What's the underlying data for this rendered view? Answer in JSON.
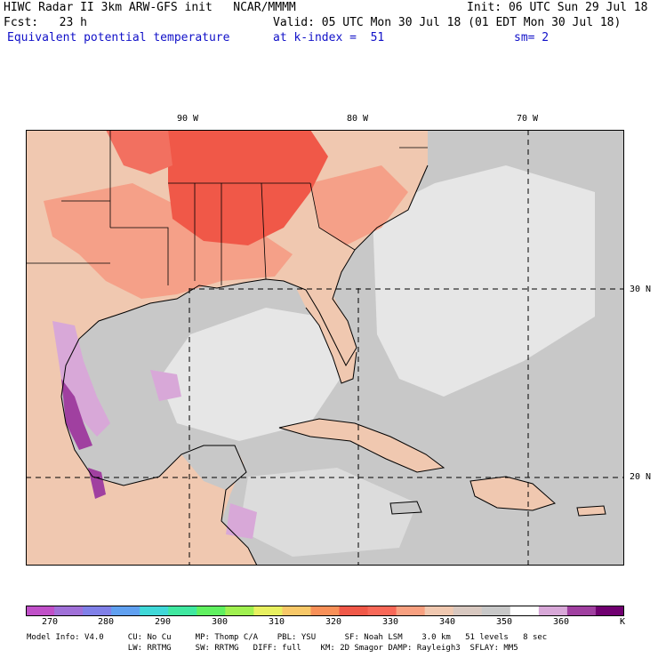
{
  "header": {
    "line1_left": "HIWC Radar II 3km ARW-GFS init   NCAR/MMMM",
    "line1_right": "Init: 06 UTC Sun 29 Jul 18",
    "line2_left": "Fcst:   23 h",
    "line2_right": "Valid: 05 UTC Mon 30 Jul 18 (01 EDT Mon 30 Jul 18)",
    "line3_field": "Equivalent potential temperature",
    "line3_level": "at k-index =  51",
    "line3_sm": "sm= 2"
  },
  "axes": {
    "lon_labels": [
      "90 W",
      "80 W",
      "70 W"
    ],
    "lat_labels": [
      "30 N",
      "20 N"
    ]
  },
  "colorbar": {
    "unit": "K",
    "ticks": [
      "270",
      "280",
      "290",
      "300",
      "310",
      "320",
      "330",
      "340",
      "350",
      "360"
    ],
    "colors": [
      "#c050c8",
      "#a070d8",
      "#8080e8",
      "#60a0f0",
      "#40d8d8",
      "#40e8a0",
      "#60f060",
      "#a0f050",
      "#e8f060",
      "#f8c868",
      "#f89058",
      "#f05848",
      "#f86858",
      "#f8a080",
      "#f0c8b0",
      "#d8c8c0",
      "#c8c8c8",
      "#ffffff",
      "#d8a8d8",
      "#a040a0",
      "#700070"
    ]
  },
  "map": {
    "colors": {
      "ocean": "#c8c8c8",
      "ocean_light": "#e6e6e6",
      "land": "#f0c8b0",
      "warm": "#f5a088",
      "hot": "#f05848",
      "purple_light": "#d8a8d8",
      "purple_dark": "#a040a0"
    }
  },
  "footer": {
    "line1": "Model Info: V4.0     CU: No Cu     MP: Thomp C/A    PBL: YSU      SF: Noah LSM    3.0 km   51 levels   8 sec",
    "line2": "                     LW: RRTMG     SW: RRTMG   DIFF: full    KM: 2D Smagor DAMP: Rayleigh3  SFLAY: MM5"
  }
}
